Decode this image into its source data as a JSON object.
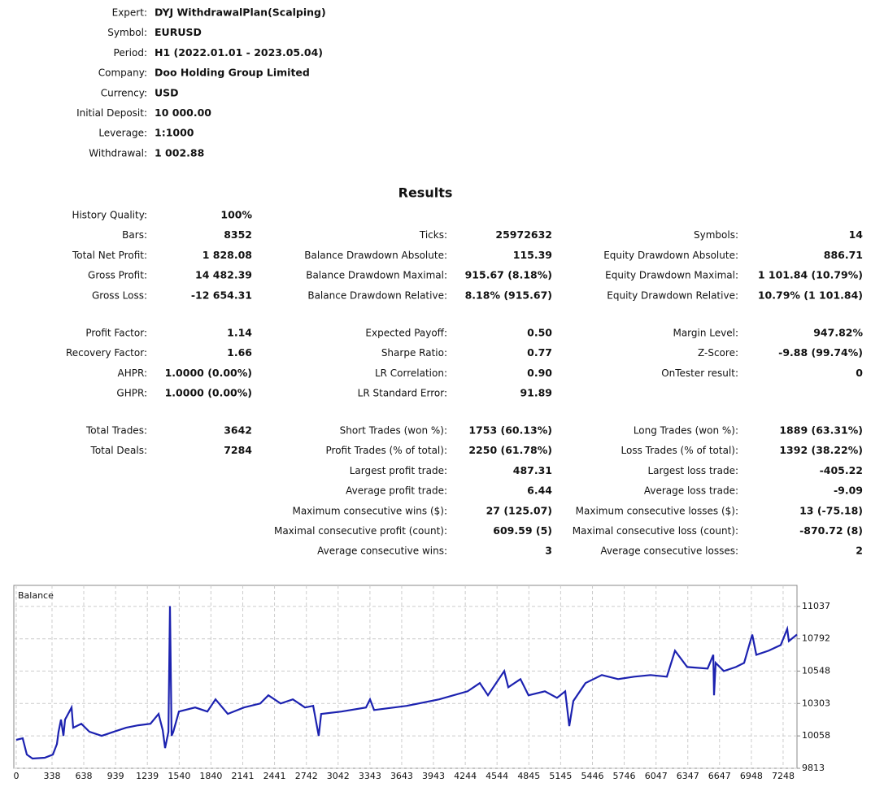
{
  "header": {
    "rows": [
      [
        "Expert:",
        "DYJ WithdrawalPlan(Scalping)"
      ],
      [
        "Symbol:",
        "EURUSD"
      ],
      [
        "Period:",
        "H1 (2022.01.01 - 2023.05.04)"
      ],
      [
        "Company:",
        "Doo Holding Group Limited"
      ],
      [
        "Currency:",
        "USD"
      ],
      [
        "Initial Deposit:",
        "10 000.00"
      ],
      [
        "Leverage:",
        "1:1000"
      ],
      [
        "Withdrawal:",
        "1 002.88"
      ]
    ]
  },
  "results": {
    "title": "Results",
    "sections": [
      [
        [
          [
            "History Quality:",
            "100%"
          ],
          null,
          null
        ],
        [
          [
            "Bars:",
            "8352"
          ],
          [
            "Ticks:",
            "25972632"
          ],
          [
            "Symbols:",
            "14"
          ]
        ],
        [
          [
            "Total Net Profit:",
            "1 828.08"
          ],
          [
            "Balance Drawdown Absolute:",
            "115.39"
          ],
          [
            "Equity Drawdown Absolute:",
            "886.71"
          ]
        ],
        [
          [
            "Gross Profit:",
            "14 482.39"
          ],
          [
            "Balance Drawdown Maximal:",
            "915.67 (8.18%)"
          ],
          [
            "Equity Drawdown Maximal:",
            "1 101.84 (10.79%)"
          ]
        ],
        [
          [
            "Gross Loss:",
            "-12 654.31"
          ],
          [
            "Balance Drawdown Relative:",
            "8.18% (915.67)"
          ],
          [
            "Equity Drawdown Relative:",
            "10.79% (1 101.84)"
          ]
        ]
      ],
      [
        [
          [
            "Profit Factor:",
            "1.14"
          ],
          [
            "Expected Payoff:",
            "0.50"
          ],
          [
            "Margin Level:",
            "947.82%"
          ]
        ],
        [
          [
            "Recovery Factor:",
            "1.66"
          ],
          [
            "Sharpe Ratio:",
            "0.77"
          ],
          [
            "Z-Score:",
            "-9.88 (99.74%)"
          ]
        ],
        [
          [
            "AHPR:",
            "1.0000 (0.00%)"
          ],
          [
            "LR Correlation:",
            "0.90"
          ],
          [
            "OnTester result:",
            "0"
          ]
        ],
        [
          [
            "GHPR:",
            "1.0000 (0.00%)"
          ],
          [
            "LR Standard Error:",
            "91.89"
          ],
          null
        ]
      ],
      [
        [
          [
            "Total Trades:",
            "3642"
          ],
          [
            "Short Trades (won %):",
            "1753 (60.13%)"
          ],
          [
            "Long Trades (won %):",
            "1889 (63.31%)"
          ]
        ],
        [
          [
            "Total Deals:",
            "7284"
          ],
          [
            "Profit Trades (% of total):",
            "2250 (61.78%)"
          ],
          [
            "Loss Trades (% of total):",
            "1392 (38.22%)"
          ]
        ],
        [
          null,
          [
            "Largest profit trade:",
            "487.31"
          ],
          [
            "Largest loss trade:",
            "-405.22"
          ]
        ],
        [
          null,
          [
            "Average profit trade:",
            "6.44"
          ],
          [
            "Average loss trade:",
            "-9.09"
          ]
        ],
        [
          null,
          [
            "Maximum consecutive wins ($):",
            "27 (125.07)"
          ],
          [
            "Maximum consecutive losses ($):",
            "13 (-75.18)"
          ]
        ],
        [
          null,
          [
            "Maximal consecutive profit (count):",
            "609.59 (5)"
          ],
          [
            "Maximal consecutive loss (count):",
            "-870.72 (8)"
          ]
        ],
        [
          null,
          [
            "Average consecutive wins:",
            "3"
          ],
          [
            "Average consecutive losses:",
            "2"
          ]
        ]
      ]
    ]
  },
  "chart_data": {
    "type": "line",
    "grid": true,
    "x": [
      0,
      61,
      100,
      154,
      269,
      346,
      384,
      400,
      423,
      446,
      461,
      523,
      538,
      615,
      692,
      807,
      922,
      1038,
      1153,
      1268,
      1345,
      1384,
      1407,
      1438,
      1453,
      1468,
      1484,
      1537,
      1691,
      1806,
      1883,
      1999,
      2152,
      2306,
      2383,
      2499,
      2614,
      2729,
      2806,
      2859,
      2882,
      3074,
      3305,
      3344,
      3382,
      3690,
      3997,
      4266,
      4381,
      4458,
      4612,
      4650,
      4766,
      4842,
      4996,
      5111,
      5188,
      5227,
      5265,
      5380,
      5534,
      5688,
      5841,
      5995,
      6149,
      6226,
      6341,
      6534,
      6588,
      6595,
      6610,
      6687,
      6802,
      6879,
      6956,
      6995,
      7110,
      7225,
      7287,
      7302,
      7379
    ],
    "series": [
      {
        "name": "Balance",
        "color": "#1c22b0",
        "values": [
          10028,
          10040,
          9917,
          9887,
          9893,
          9917,
          9997,
          10089,
          10181,
          10058,
          10181,
          10273,
          10120,
          10150,
          10089,
          10058,
          10089,
          10120,
          10138,
          10150,
          10224,
          10101,
          9966,
          10089,
          11039,
          10058,
          10089,
          10242,
          10273,
          10242,
          10334,
          10224,
          10273,
          10303,
          10365,
          10303,
          10334,
          10273,
          10285,
          10058,
          10224,
          10242,
          10273,
          10334,
          10254,
          10285,
          10334,
          10395,
          10457,
          10365,
          10548,
          10426,
          10487,
          10365,
          10395,
          10346,
          10395,
          10132,
          10322,
          10457,
          10518,
          10487,
          10506,
          10518,
          10506,
          10702,
          10579,
          10567,
          10671,
          10365,
          10610,
          10548,
          10579,
          10610,
          10824,
          10671,
          10702,
          10745,
          10867,
          10775,
          10824
        ]
      }
    ],
    "xlim": [
      -23,
      7379
    ],
    "ylim": [
      9813,
      11196
    ],
    "xticks": [
      0,
      338,
      638,
      939,
      1239,
      1540,
      1840,
      2141,
      2441,
      2742,
      3042,
      3343,
      3643,
      3943,
      4244,
      4544,
      4845,
      5145,
      5446,
      5746,
      6047,
      6347,
      6647,
      6948,
      7248
    ],
    "yticks": [
      9813,
      10058,
      10303,
      10548,
      10792,
      11037
    ]
  }
}
